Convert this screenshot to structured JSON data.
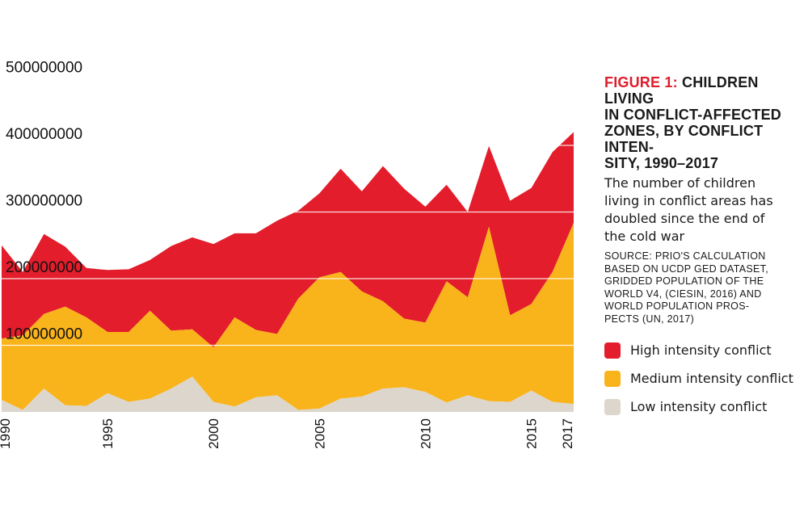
{
  "figure": {
    "label": "FIGURE 1:",
    "title": "CHILDREN LIVING\nIN CONFLICT-AFFECTED\nZONES, BY CONFLICT INTEN-\nSITY, 1990–2017",
    "subtitle": "The number of children\nliving in conflict areas has\ndoubled since the end of\nthe cold war",
    "source": "SOURCE: PRIO'S CALCULATION\nBASED ON UCDP GED DATASET,\nGRIDDED POPULATION OF THE\nWORLD V4, (CIESIN, 2016) AND\nWORLD POPULATION PROS-\nPECTS (UN, 2017)"
  },
  "legend": [
    {
      "label": "High intensity conflict",
      "color": "#e31d2b"
    },
    {
      "label": "Medium intensity conflict",
      "color": "#f9b31b"
    },
    {
      "label": "Low intensity conflict",
      "color": "#ddd6cc"
    }
  ],
  "chart_data": {
    "type": "area",
    "stacked": true,
    "x": [
      1990,
      1991,
      1992,
      1993,
      1994,
      1995,
      1996,
      1997,
      1998,
      1999,
      2000,
      2001,
      2002,
      2003,
      2004,
      2005,
      2006,
      2007,
      2008,
      2009,
      2010,
      2011,
      2012,
      2013,
      2014,
      2015,
      2016,
      2017
    ],
    "series": [
      {
        "name": "Low intensity conflict",
        "color": "#ddd6cc",
        "values": [
          18000000,
          3000000,
          35000000,
          10000000,
          9000000,
          28000000,
          15000000,
          20000000,
          35000000,
          53000000,
          15000000,
          8000000,
          22000000,
          25000000,
          3000000,
          5000000,
          20000000,
          23000000,
          35000000,
          37000000,
          30000000,
          14000000,
          25000000,
          16000000,
          15000000,
          32000000,
          15000000,
          12000000
        ]
      },
      {
        "name": "Medium intensity conflict",
        "color": "#f9b31b",
        "values": [
          92000000,
          112000000,
          112000000,
          148000000,
          133000000,
          92000000,
          105000000,
          132000000,
          87000000,
          71000000,
          82000000,
          134000000,
          101000000,
          92000000,
          167000000,
          197000000,
          190000000,
          158000000,
          131000000,
          103000000,
          104000000,
          182000000,
          147000000,
          262000000,
          130000000,
          130000000,
          195000000,
          272000000
        ]
      },
      {
        "name": "High intensity conflict",
        "color": "#e31d2b",
        "values": [
          140000000,
          95000000,
          120000000,
          90000000,
          74000000,
          93000000,
          94000000,
          76000000,
          127000000,
          138000000,
          155000000,
          126000000,
          145000000,
          170000000,
          132000000,
          126000000,
          155000000,
          150000000,
          203000000,
          195000000,
          174000000,
          145000000,
          128000000,
          121000000,
          172000000,
          174000000,
          180000000,
          136000000
        ]
      }
    ],
    "yticks": [
      "100000000",
      "200000000",
      "300000000",
      "400000000",
      "500000000"
    ],
    "xticks": [
      "1990",
      "1995",
      "2000",
      "2005",
      "2010",
      "2015",
      "2017"
    ],
    "ylim": [
      0,
      520000000
    ],
    "xlim": [
      1990,
      2017
    ],
    "grid": true
  }
}
